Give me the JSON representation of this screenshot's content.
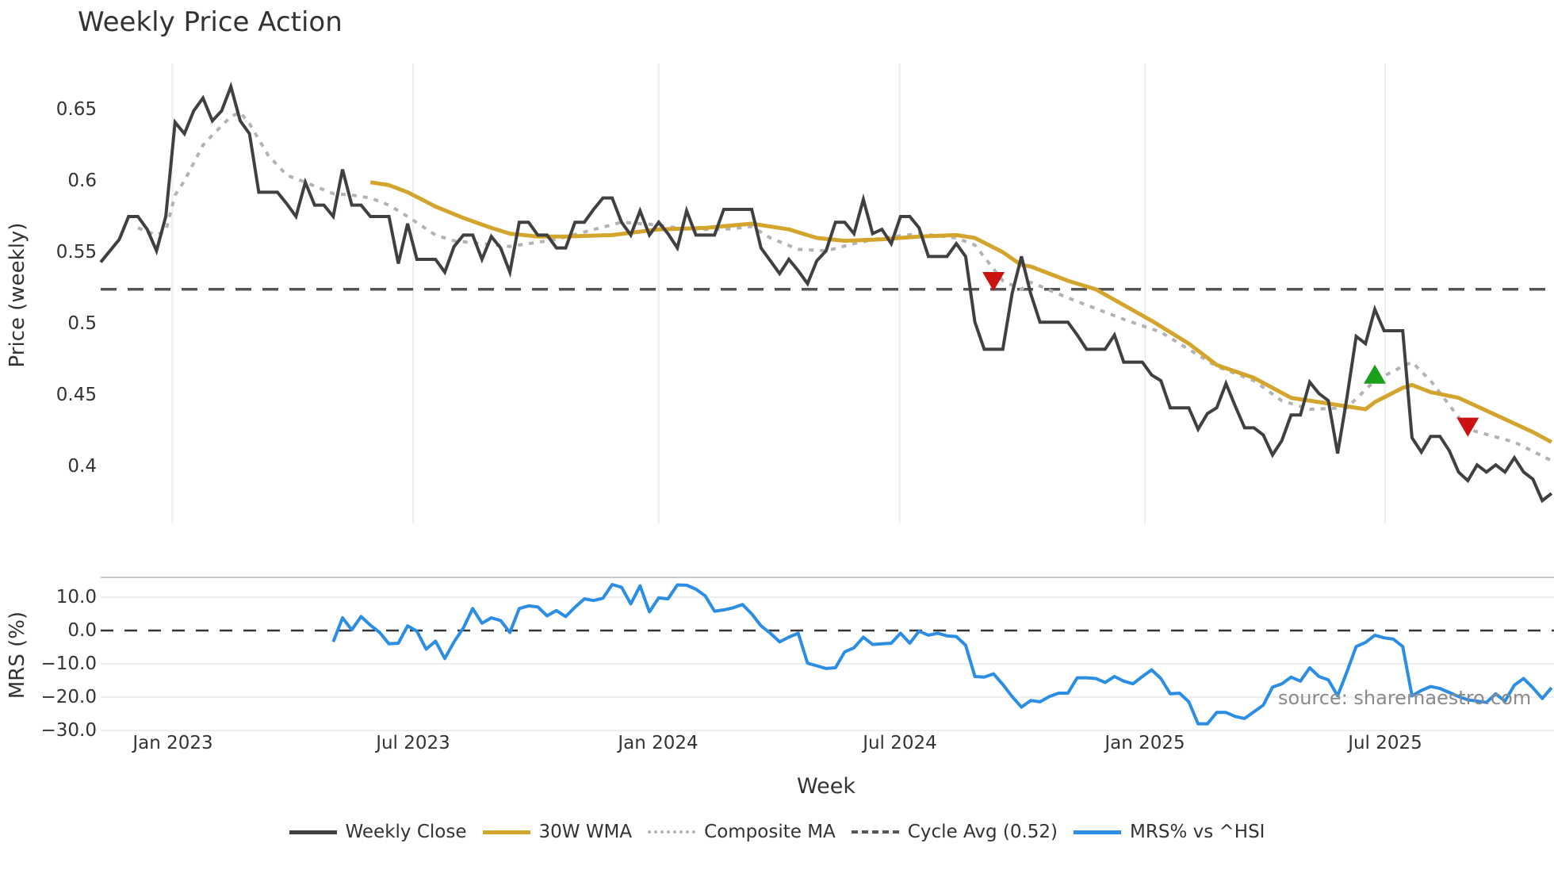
{
  "chart": {
    "title": "Weekly Price Action",
    "xlabel": "Week",
    "price_ylabel": "Price (weekly)",
    "mrs_ylabel": "MRS (%)",
    "source": "source: sharemaestro.com",
    "price_yticks": [
      "0.65",
      "0.6",
      "0.55",
      "0.5",
      "0.45",
      "0.4"
    ],
    "mrs_yticks": [
      "10.0",
      "0.0",
      "−10.0",
      "−20.0",
      "−30.0"
    ],
    "xticks": [
      "Jan 2023",
      "Jul 2023",
      "Jan 2024",
      "Jul 2024",
      "Jan 2025",
      "Jul 2025"
    ],
    "legend": [
      {
        "label": "Weekly Close",
        "color": "#404040",
        "style": "solid"
      },
      {
        "label": "30W WMA",
        "color": "#d4a52c",
        "style": "solid"
      },
      {
        "label": "Composite MA",
        "color": "#b3b3b3",
        "style": "dotted"
      },
      {
        "label": "Cycle Avg (0.52)",
        "color": "#555555",
        "style": "dashed"
      },
      {
        "label": "MRS% vs ^HSI",
        "color": "#2b8de3",
        "style": "solid"
      }
    ]
  },
  "chart_data": [
    {
      "type": "line",
      "title": "Weekly Price Action",
      "xlabel": "Week",
      "ylabel": "Price (weekly)",
      "ylim": [
        0.365,
        0.68
      ],
      "x_start": "Nov 2022 (week 0)",
      "x_ticks": {
        "Jan 2023": 7.7,
        "Jul 2023": 33.6,
        "Jan 2024": 60.0,
        "Jul 2024": 85.9,
        "Jan 2025": 112.3,
        "Jul 2025": 138.1
      },
      "grid": "vertical",
      "legend_position": "bottom",
      "series": [
        {
          "name": "Weekly Close",
          "color": "#404040",
          "start_index": 0,
          "values": [
            0.543,
            0.551,
            0.559,
            0.575,
            0.575,
            0.566,
            0.551,
            0.575,
            0.641,
            0.633,
            0.649,
            0.658,
            0.642,
            0.649,
            0.666,
            0.642,
            0.633,
            0.592,
            0.592,
            0.592,
            0.584,
            0.575,
            0.599,
            0.583,
            0.583,
            0.575,
            0.608,
            0.583,
            0.583,
            0.575,
            0.575,
            0.575,
            0.542,
            0.57,
            0.545,
            0.545,
            0.545,
            0.536,
            0.554,
            0.562,
            0.562,
            0.545,
            0.561,
            0.553,
            0.536,
            0.571,
            0.571,
            0.562,
            0.562,
            0.553,
            0.553,
            0.571,
            0.571,
            0.58,
            0.588,
            0.588,
            0.571,
            0.562,
            0.579,
            0.562,
            0.571,
            0.563,
            0.553,
            0.579,
            0.562,
            0.562,
            0.562,
            0.58,
            0.58,
            0.58,
            0.58,
            0.553,
            0.544,
            0.535,
            0.545,
            0.537,
            0.528,
            0.544,
            0.551,
            0.571,
            0.571,
            0.563,
            0.587,
            0.563,
            0.566,
            0.556,
            0.575,
            0.575,
            0.567,
            0.547,
            0.547,
            0.547,
            0.556,
            0.547,
            0.501,
            0.482,
            0.482,
            0.482,
            0.521,
            0.547,
            0.521,
            0.501,
            0.501,
            0.501,
            0.501,
            0.492,
            0.482,
            0.482,
            0.482,
            0.492,
            0.473,
            0.473,
            0.473,
            0.464,
            0.46,
            0.441,
            0.441,
            0.441,
            0.426,
            0.437,
            0.441,
            0.458,
            0.442,
            0.427,
            0.427,
            0.422,
            0.408,
            0.418,
            0.436,
            0.436,
            0.459,
            0.451,
            0.446,
            0.409,
            0.448,
            0.491,
            0.486,
            0.51,
            0.495,
            0.495,
            0.495,
            0.42,
            0.41,
            0.421,
            0.421,
            0.411,
            0.396,
            0.39,
            0.401,
            0.396,
            0.401,
            0.396,
            0.406,
            0.396,
            0.391,
            0.376,
            0.381
          ]
        },
        {
          "name": "30W WMA",
          "color": "#d4a52c",
          "points": [
            [
              29,
              0.599
            ],
            [
              31,
              0.597
            ],
            [
              33,
              0.592
            ],
            [
              36,
              0.582
            ],
            [
              39,
              0.574
            ],
            [
              42,
              0.567
            ],
            [
              44,
              0.563
            ],
            [
              47,
              0.561
            ],
            [
              50,
              0.561
            ],
            [
              55,
              0.562
            ],
            [
              60,
              0.566
            ],
            [
              65,
              0.567
            ],
            [
              70,
              0.57
            ],
            [
              74,
              0.566
            ],
            [
              77,
              0.56
            ],
            [
              80,
              0.558
            ],
            [
              84,
              0.559
            ],
            [
              88,
              0.561
            ],
            [
              92,
              0.562
            ],
            [
              94,
              0.56
            ],
            [
              97,
              0.55
            ],
            [
              99,
              0.541
            ],
            [
              100,
              0.54
            ],
            [
              104,
              0.53
            ],
            [
              107,
              0.524
            ],
            [
              113,
              0.502
            ],
            [
              117,
              0.486
            ],
            [
              120,
              0.471
            ],
            [
              124,
              0.462
            ],
            [
              128,
              0.448
            ],
            [
              131,
              0.445
            ],
            [
              134,
              0.442
            ],
            [
              136,
              0.44
            ],
            [
              137,
              0.445
            ],
            [
              140,
              0.455
            ],
            [
              141,
              0.457
            ],
            [
              143,
              0.452
            ],
            [
              146,
              0.448
            ],
            [
              150,
              0.436
            ],
            [
              154,
              0.424
            ],
            [
              156,
              0.417
            ]
          ]
        },
        {
          "name": "Composite MA",
          "color": "#b3b3b3",
          "points": [
            [
              4,
              0.567
            ],
            [
              6,
              0.562
            ],
            [
              7,
              0.565
            ],
            [
              8,
              0.59
            ],
            [
              9,
              0.6
            ],
            [
              11,
              0.625
            ],
            [
              12,
              0.632
            ],
            [
              14,
              0.645
            ],
            [
              15,
              0.648
            ],
            [
              16,
              0.64
            ],
            [
              18,
              0.618
            ],
            [
              20,
              0.604
            ],
            [
              22,
              0.599
            ],
            [
              25,
              0.591
            ],
            [
              27,
              0.59
            ],
            [
              29,
              0.588
            ],
            [
              31,
              0.583
            ],
            [
              33,
              0.575
            ],
            [
              36,
              0.562
            ],
            [
              38,
              0.558
            ],
            [
              44,
              0.554
            ],
            [
              49,
              0.559
            ],
            [
              56,
              0.571
            ],
            [
              60,
              0.569
            ],
            [
              63,
              0.566
            ],
            [
              67,
              0.566
            ],
            [
              70,
              0.568
            ],
            [
              72,
              0.56
            ],
            [
              75,
              0.552
            ],
            [
              78,
              0.551
            ],
            [
              81,
              0.556
            ],
            [
              84,
              0.56
            ],
            [
              88,
              0.563
            ],
            [
              92,
              0.56
            ],
            [
              94,
              0.555
            ],
            [
              97,
              0.53
            ],
            [
              99,
              0.524
            ],
            [
              100,
              0.529
            ],
            [
              104,
              0.518
            ],
            [
              110,
              0.503
            ],
            [
              114,
              0.494
            ],
            [
              120,
              0.47
            ],
            [
              124,
              0.46
            ],
            [
              127,
              0.446
            ],
            [
              130,
              0.44
            ],
            [
              134,
              0.441
            ],
            [
              137,
              0.46
            ],
            [
              140,
              0.47
            ],
            [
              141,
              0.473
            ],
            [
              143,
              0.46
            ],
            [
              147,
              0.426
            ],
            [
              152,
              0.417
            ],
            [
              156,
              0.404
            ]
          ]
        },
        {
          "name": "Cycle Avg (0.52)",
          "color": "#555555",
          "value": 0.524
        }
      ],
      "markers": [
        {
          "type": "sell",
          "shape": "triangle-down",
          "color": "#cc1111",
          "index": 96,
          "value": 0.53
        },
        {
          "type": "buy",
          "shape": "triangle-up",
          "color": "#1aa01a",
          "index": 137,
          "value": 0.464
        },
        {
          "type": "sell",
          "shape": "triangle-down",
          "color": "#cc1111",
          "index": 147,
          "value": 0.428
        }
      ]
    },
    {
      "type": "line",
      "title": "",
      "xlabel": "Week",
      "ylabel": "MRS (%)",
      "ylim": [
        -30,
        16
      ],
      "yticks": [
        10,
        0,
        -10,
        -20,
        -30
      ],
      "grid": "horizontal",
      "series": [
        {
          "name": "MRS% vs ^HSI",
          "color": "#2b8de3",
          "start_index": 25,
          "values": [
            -3.4,
            3.8,
            0.2,
            4.2,
            1.6,
            -0.6,
            -4.0,
            -3.8,
            1.4,
            -0.2,
            -5.6,
            -3.2,
            -8.4,
            -3.4,
            0.8,
            6.6,
            2.2,
            3.8,
            3.0,
            -0.6,
            6.6,
            7.4,
            7.1,
            4.4,
            6.0,
            4.2,
            7.0,
            9.5,
            9.0,
            9.7,
            13.8,
            13.0,
            8.0,
            13.4,
            5.6,
            9.8,
            9.5,
            13.7,
            13.6,
            12.4,
            10.4,
            5.8,
            6.2,
            6.8,
            7.8,
            5.0,
            1.4,
            -0.8,
            -3.4,
            -2.0,
            -0.8,
            -9.8,
            -10.6,
            -11.4,
            -11.2,
            -6.4,
            -5.2,
            -2.0,
            -4.2,
            -4.0,
            -3.8,
            -0.8,
            -3.8,
            -0.2,
            -1.4,
            -0.8,
            -1.6,
            -1.8,
            -4.4,
            -13.8,
            -14.0,
            -13.0,
            -16.2,
            -19.8,
            -23.0,
            -21.0,
            -21.4,
            -19.8,
            -18.8,
            -18.8,
            -14.2,
            -14.2,
            -14.4,
            -15.6,
            -13.8,
            -15.2,
            -16.0,
            -13.8,
            -11.8,
            -14.4,
            -19.0,
            -18.8,
            -21.4,
            -28.0,
            -28.0,
            -24.6,
            -24.6,
            -25.8,
            -26.4,
            -24.4,
            -22.4,
            -17.0,
            -16.0,
            -14.0,
            -15.2,
            -11.2,
            -13.8,
            -14.8,
            -19.6,
            -12.4,
            -4.8,
            -3.6,
            -1.4,
            -2.2,
            -2.6,
            -4.8,
            -19.6,
            -18.0,
            -16.8,
            -17.4,
            -18.6,
            -19.8,
            -20.8,
            -21.2,
            -21.6,
            -19.0,
            -21.2,
            -16.4,
            -14.4,
            -17.2,
            -20.4,
            -17.2
          ]
        },
        {
          "name": "Zero line",
          "color": "#333333",
          "style": "dashed",
          "value": 0
        }
      ]
    }
  ]
}
